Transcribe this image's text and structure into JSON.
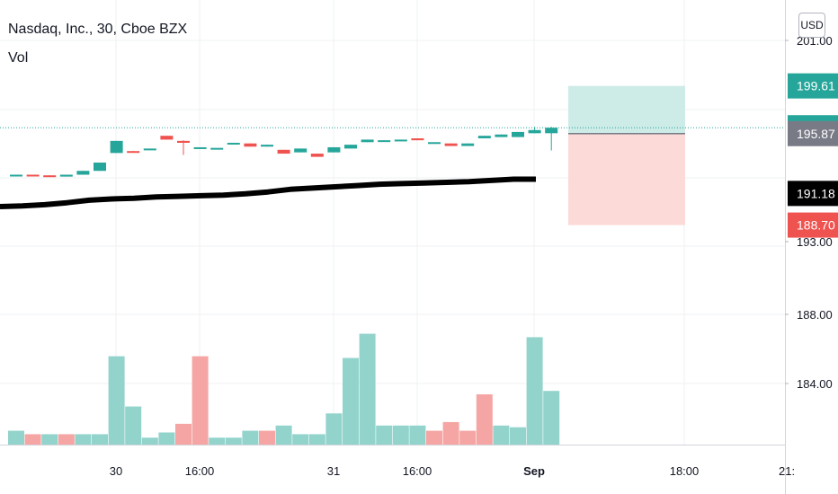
{
  "legend": {
    "title": "Nasdaq, Inc., 30, Cboe BZX",
    "indicator": "Vol"
  },
  "currency": "USD",
  "colors": {
    "up": "#26a69a",
    "down": "#ef5350",
    "vol_up": "#92d3cc",
    "vol_down": "#f5a5a3",
    "ma": "#000000",
    "last_line": "#26a69a",
    "target_zone": "#cdebe7",
    "stop_zone": "#fbdad8",
    "entry": "#787b86"
  },
  "chart_data": {
    "type": "candlestick",
    "title": "Nasdaq, Inc., 30, Cboe BZX",
    "price_axis": {
      "range": [
        181.7,
        205.5
      ],
      "tick_labels": [
        "201.00",
        "193.00",
        "188.00",
        "184.00"
      ],
      "badges": [
        {
          "label": "199.61",
          "value": 199.61,
          "color": "#26a69a"
        },
        {
          "label": "196.33",
          "value": 196.33,
          "color": "#26a69a"
        },
        {
          "label": "195.87",
          "value": 195.87,
          "color": "#787b86"
        },
        {
          "label": "191.18",
          "value": 191.18,
          "color": "#000000"
        },
        {
          "label": "188.70",
          "value": 188.7,
          "color": "#ef5350"
        }
      ]
    },
    "time_axis": {
      "labels": [
        "30",
        "16:00",
        "31",
        "16:00",
        "Sep",
        "18:00",
        "21:"
      ],
      "bold_label": "Sep"
    },
    "candles": [
      {
        "o": 192.65,
        "c": 192.65,
        "h": 192.65,
        "l": 192.65
      },
      {
        "o": 192.65,
        "c": 192.55,
        "h": 192.65,
        "l": 192.55
      },
      {
        "o": 192.6,
        "c": 192.5,
        "h": 192.6,
        "l": 192.5
      },
      {
        "o": 192.5,
        "c": 192.65,
        "h": 192.65,
        "l": 192.5
      },
      {
        "o": 192.65,
        "c": 192.95,
        "h": 192.95,
        "l": 192.65
      },
      {
        "o": 192.95,
        "c": 193.6,
        "h": 193.6,
        "l": 192.95
      },
      {
        "o": 194.35,
        "c": 195.3,
        "h": 195.3,
        "l": 194.35
      },
      {
        "o": 194.5,
        "c": 194.45,
        "h": 194.5,
        "l": 194.45
      },
      {
        "o": 194.6,
        "c": 194.7,
        "h": 194.7,
        "l": 194.6
      },
      {
        "o": 195.7,
        "c": 195.4,
        "h": 195.7,
        "l": 195.4
      },
      {
        "o": 195.3,
        "c": 195.15,
        "h": 195.35,
        "l": 194.2
      },
      {
        "o": 194.8,
        "c": 194.8,
        "h": 194.8,
        "l": 194.8
      },
      {
        "o": 194.75,
        "c": 194.75,
        "h": 194.75,
        "l": 194.75
      },
      {
        "o": 195.05,
        "c": 195.15,
        "h": 195.15,
        "l": 195.05
      },
      {
        "o": 195.1,
        "c": 194.85,
        "h": 195.1,
        "l": 194.85
      },
      {
        "o": 194.85,
        "c": 195.0,
        "h": 195.0,
        "l": 194.85
      },
      {
        "o": 194.6,
        "c": 194.3,
        "h": 194.6,
        "l": 194.3
      },
      {
        "o": 194.4,
        "c": 194.7,
        "h": 194.7,
        "l": 194.4
      },
      {
        "o": 194.3,
        "c": 194.05,
        "h": 194.3,
        "l": 194.05
      },
      {
        "o": 194.4,
        "c": 194.8,
        "h": 194.8,
        "l": 194.4
      },
      {
        "o": 194.7,
        "c": 195.0,
        "h": 195.0,
        "l": 194.7
      },
      {
        "o": 195.2,
        "c": 195.4,
        "h": 195.4,
        "l": 195.2
      },
      {
        "o": 195.25,
        "c": 195.35,
        "h": 195.35,
        "l": 195.25
      },
      {
        "o": 195.3,
        "c": 195.4,
        "h": 195.4,
        "l": 195.3
      },
      {
        "o": 195.5,
        "c": 195.35,
        "h": 195.5,
        "l": 195.35
      },
      {
        "o": 195.2,
        "c": 195.2,
        "h": 195.2,
        "l": 195.2
      },
      {
        "o": 195.1,
        "c": 194.9,
        "h": 195.1,
        "l": 194.9
      },
      {
        "o": 194.9,
        "c": 195.1,
        "h": 195.1,
        "l": 194.9
      },
      {
        "o": 195.5,
        "c": 195.7,
        "h": 195.7,
        "l": 195.5
      },
      {
        "o": 195.6,
        "c": 195.8,
        "h": 195.8,
        "l": 195.6
      },
      {
        "o": 195.6,
        "c": 196.0,
        "h": 196.0,
        "l": 195.6
      },
      {
        "o": 195.9,
        "c": 196.15,
        "h": 196.4,
        "l": 195.9
      },
      {
        "o": 195.9,
        "c": 196.33,
        "h": 196.4,
        "l": 194.55
      }
    ],
    "moving_average": [
      190.15,
      190.2,
      190.3,
      190.45,
      190.65,
      190.75,
      190.8,
      190.9,
      190.95,
      191.0,
      191.05,
      191.15,
      191.3,
      191.5,
      191.6,
      191.7,
      191.8,
      191.9,
      191.95,
      192.0,
      192.05,
      192.1,
      192.2,
      192.3,
      192.3
    ],
    "volume": [
      {
        "v": 8,
        "dir": "up"
      },
      {
        "v": 6,
        "dir": "down"
      },
      {
        "v": 6,
        "dir": "up"
      },
      {
        "v": 6,
        "dir": "down"
      },
      {
        "v": 6,
        "dir": "up"
      },
      {
        "v": 6,
        "dir": "up"
      },
      {
        "v": 51,
        "dir": "up"
      },
      {
        "v": 22,
        "dir": "up"
      },
      {
        "v": 4,
        "dir": "up"
      },
      {
        "v": 7,
        "dir": "up"
      },
      {
        "v": 12,
        "dir": "down"
      },
      {
        "v": 51,
        "dir": "down"
      },
      {
        "v": 4,
        "dir": "up"
      },
      {
        "v": 4,
        "dir": "up"
      },
      {
        "v": 8,
        "dir": "up"
      },
      {
        "v": 8,
        "dir": "down"
      },
      {
        "v": 11,
        "dir": "up"
      },
      {
        "v": 6,
        "dir": "up"
      },
      {
        "v": 6,
        "dir": "up"
      },
      {
        "v": 18,
        "dir": "up"
      },
      {
        "v": 50,
        "dir": "up"
      },
      {
        "v": 64,
        "dir": "up"
      },
      {
        "v": 11,
        "dir": "up"
      },
      {
        "v": 11,
        "dir": "up"
      },
      {
        "v": 11,
        "dir": "up"
      },
      {
        "v": 8,
        "dir": "down"
      },
      {
        "v": 13,
        "dir": "down"
      },
      {
        "v": 8,
        "dir": "down"
      },
      {
        "v": 29,
        "dir": "down"
      },
      {
        "v": 11,
        "dir": "up"
      },
      {
        "v": 10,
        "dir": "up"
      },
      {
        "v": 62,
        "dir": "up"
      },
      {
        "v": 31,
        "dir": "up"
      }
    ],
    "position": {
      "target": 199.61,
      "entry": 195.87,
      "stop": 188.7
    },
    "last_price": 196.33
  }
}
